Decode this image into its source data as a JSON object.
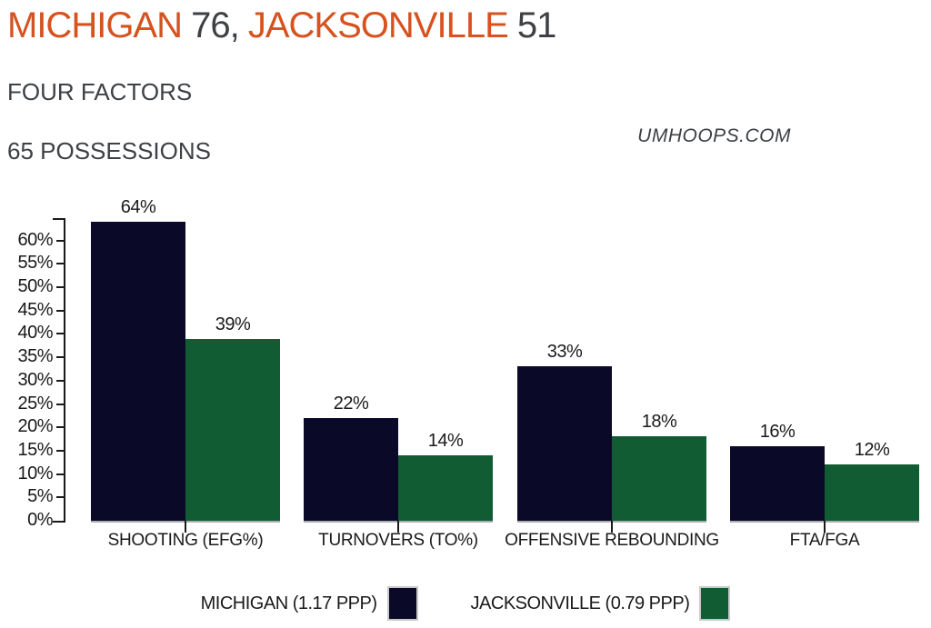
{
  "header": {
    "title": {
      "team1": "MICHIGAN",
      "score1": "76,",
      "team2": "JACKSONVILLE",
      "score2": "51"
    },
    "subtitle": "FOUR FACTORS",
    "possessions": "65 POSSESSIONS",
    "watermark": "UMHOOPS.COM"
  },
  "colors": {
    "accent_orange": "#d6521f",
    "text_dark_gray": "#3d4145",
    "text_black": "#1a1a1a",
    "axis_black": "#1a1a1a",
    "group_baseline_gray": "#a9aeb1",
    "legend_swatch_border": "#c9c9c9",
    "michigan_navy": "#0a0a28",
    "jacksonville_green": "#115c33"
  },
  "chart_data": {
    "type": "bar",
    "title": "FOUR FACTORS",
    "subtitle": "65 POSSESSIONS",
    "categories": [
      "SHOOTING (EFG%)",
      "TURNOVERS (TO%)",
      "OFFENSIVE REBOUNDING",
      "FTA/FGA"
    ],
    "series": [
      {
        "name": "MICHIGAN (1.17 PPP)",
        "color": "#0a0a28",
        "values": [
          64,
          22,
          33,
          16
        ]
      },
      {
        "name": "JACKSONVILLE (0.79 PPP)",
        "color": "#115c33",
        "values": [
          39,
          14,
          18,
          12
        ]
      }
    ],
    "value_suffix": "%",
    "data_labels": true,
    "xlabel": "",
    "ylabel": "",
    "ylim": [
      0,
      65
    ],
    "ytick_step": 5,
    "yticks": [
      "0%",
      "5%",
      "10%",
      "15%",
      "20%",
      "25%",
      "30%",
      "35%",
      "40%",
      "45%",
      "50%",
      "55%",
      "60%"
    ],
    "grid": false,
    "legend_position": "bottom"
  }
}
